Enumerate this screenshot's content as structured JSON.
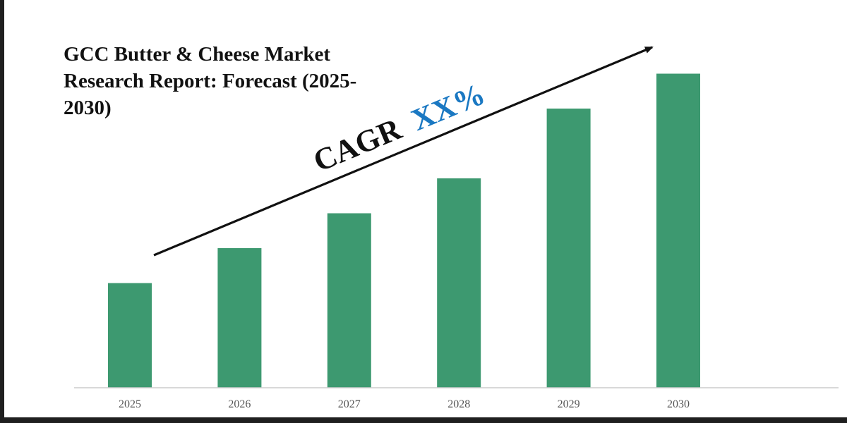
{
  "chart_data": {
    "type": "bar",
    "title": "GCC Butter & Cheese Market Research Report: Forecast (2025-2030)",
    "categories": [
      "2025",
      "2026",
      "2027",
      "2028",
      "2029",
      "2030"
    ],
    "values": [
      33,
      44,
      55,
      66,
      88,
      99
    ],
    "ylim": [
      0,
      100
    ],
    "xlabel": "",
    "ylabel": "",
    "grid": false,
    "legend": "none",
    "annotation": {
      "prefix": "CAGR",
      "value": "XX%"
    }
  },
  "colors": {
    "bar": "#3d9970",
    "annotation_prefix": "#111111",
    "annotation_value": "#1a78c2",
    "axis": "#cccccc",
    "tick_label": "#555555",
    "edge": "#1f1f1f"
  },
  "icons": {
    "trend": "arrow-up-right-icon"
  }
}
